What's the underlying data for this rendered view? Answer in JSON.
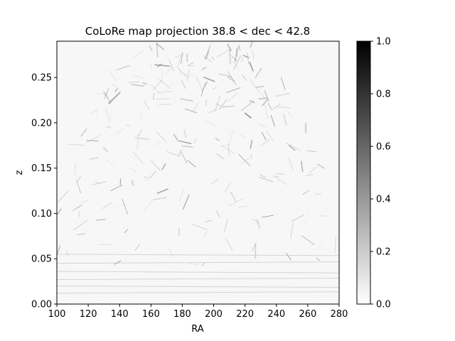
{
  "chart_data": {
    "type": "heatmap",
    "title": "CoLoRe map projection 38.8 < dec < 42.8",
    "xlabel": "RA",
    "ylabel": "z",
    "xlim": [
      100,
      280
    ],
    "ylim": [
      0.0,
      0.29
    ],
    "x_ticks": [
      "100",
      "120",
      "140",
      "160",
      "180",
      "200",
      "220",
      "240",
      "260",
      "280"
    ],
    "y_ticks": [
      "0.00",
      "0.05",
      "0.10",
      "0.15",
      "0.20",
      "0.25"
    ],
    "colorbar": {
      "colormap": "gray_r",
      "range": [
        0.0,
        1.0
      ],
      "ticks": [
        "0.0",
        "0.2",
        "0.4",
        "0.6",
        "0.8",
        "1.0"
      ]
    },
    "colors": {
      "low": "#ffffff",
      "high": "#000000"
    }
  }
}
